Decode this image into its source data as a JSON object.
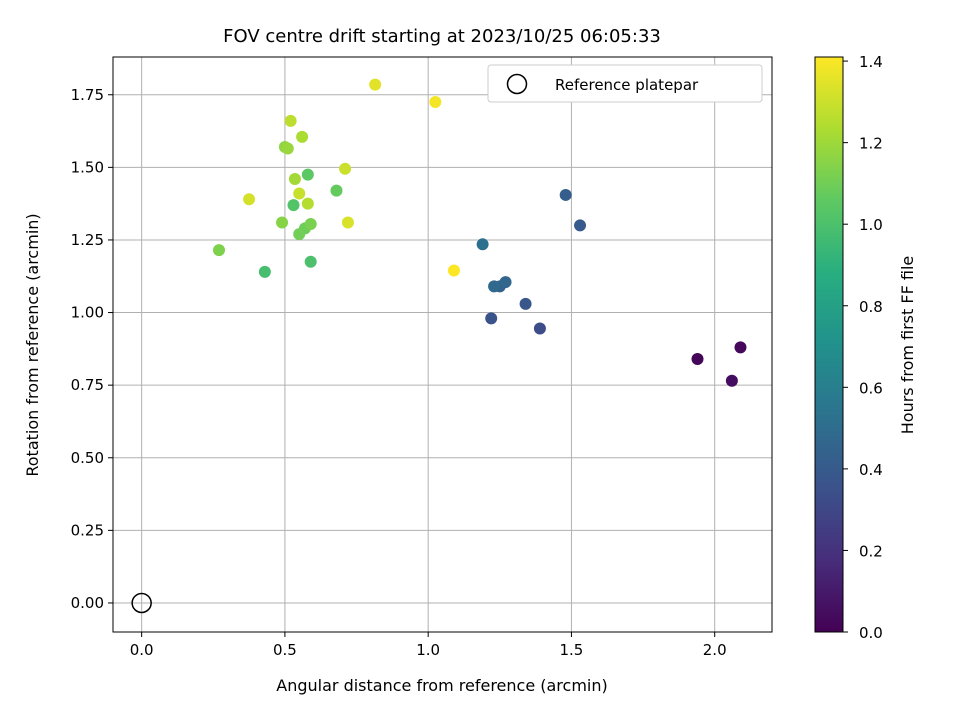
{
  "chart_data": {
    "type": "scatter",
    "title": "FOV centre drift starting at 2023/10/25 06:05:33",
    "xlabel": "Angular distance from reference (arcmin)",
    "ylabel": "Rotation from reference (arcmin)",
    "xlim": [
      -0.1,
      2.2
    ],
    "ylim": [
      -0.1,
      1.88
    ],
    "x_ticks": [
      0.0,
      0.5,
      1.0,
      1.5,
      2.0
    ],
    "x_tick_labels": [
      "0.0",
      "0.5",
      "1.0",
      "1.5",
      "2.0"
    ],
    "y_ticks": [
      0.0,
      0.25,
      0.5,
      0.75,
      1.0,
      1.25,
      1.5,
      1.75
    ],
    "y_tick_labels": [
      "0.00",
      "0.25",
      "0.50",
      "0.75",
      "1.00",
      "1.25",
      "1.50",
      "1.75"
    ],
    "grid": true,
    "colorbar": {
      "label": "Hours from first FF file",
      "colormap": "viridis",
      "range": [
        0.0,
        1.41
      ],
      "ticks": [
        0.0,
        0.2,
        0.4,
        0.6,
        0.8,
        1.0,
        1.2,
        1.4
      ],
      "tick_labels": [
        "0.0",
        "0.2",
        "0.4",
        "0.6",
        "0.8",
        "1.0",
        "1.2",
        "1.4"
      ]
    },
    "legend": {
      "placement": "upper-right",
      "entries": [
        {
          "label": "Reference platepar",
          "marker": "hollow-circle",
          "color": "#000000"
        }
      ]
    },
    "reference_point": {
      "x": 0.0,
      "y": 0.0
    },
    "points": [
      {
        "x": 1.94,
        "y": 0.84,
        "c": 0.02
      },
      {
        "x": 2.09,
        "y": 0.88,
        "c": 0.03
      },
      {
        "x": 2.06,
        "y": 0.765,
        "c": 0.05
      },
      {
        "x": 1.39,
        "y": 0.945,
        "c": 0.33
      },
      {
        "x": 1.22,
        "y": 0.98,
        "c": 0.36
      },
      {
        "x": 1.34,
        "y": 1.03,
        "c": 0.38
      },
      {
        "x": 1.53,
        "y": 1.3,
        "c": 0.4
      },
      {
        "x": 1.48,
        "y": 1.405,
        "c": 0.42
      },
      {
        "x": 1.25,
        "y": 1.09,
        "c": 0.44
      },
      {
        "x": 1.27,
        "y": 1.105,
        "c": 0.46
      },
      {
        "x": 1.23,
        "y": 1.09,
        "c": 0.48
      },
      {
        "x": 1.19,
        "y": 1.235,
        "c": 0.52
      },
      {
        "x": 0.43,
        "y": 1.14,
        "c": 0.98
      },
      {
        "x": 0.59,
        "y": 1.175,
        "c": 1.0
      },
      {
        "x": 0.53,
        "y": 1.37,
        "c": 1.02
      },
      {
        "x": 0.58,
        "y": 1.475,
        "c": 1.05
      },
      {
        "x": 0.68,
        "y": 1.42,
        "c": 1.07
      },
      {
        "x": 0.57,
        "y": 1.29,
        "c": 1.09
      },
      {
        "x": 0.55,
        "y": 1.27,
        "c": 1.1
      },
      {
        "x": 0.59,
        "y": 1.305,
        "c": 1.12
      },
      {
        "x": 0.27,
        "y": 1.215,
        "c": 1.13
      },
      {
        "x": 0.49,
        "y": 1.31,
        "c": 1.15
      },
      {
        "x": 0.5,
        "y": 1.57,
        "c": 1.17
      },
      {
        "x": 0.51,
        "y": 1.565,
        "c": 1.19
      },
      {
        "x": 0.535,
        "y": 1.46,
        "c": 1.21
      },
      {
        "x": 0.56,
        "y": 1.605,
        "c": 1.23
      },
      {
        "x": 0.58,
        "y": 1.375,
        "c": 1.25
      },
      {
        "x": 0.52,
        "y": 1.66,
        "c": 1.27
      },
      {
        "x": 0.55,
        "y": 1.41,
        "c": 1.29
      },
      {
        "x": 0.71,
        "y": 1.495,
        "c": 1.3
      },
      {
        "x": 0.375,
        "y": 1.39,
        "c": 1.32
      },
      {
        "x": 0.72,
        "y": 1.31,
        "c": 1.33
      },
      {
        "x": 0.815,
        "y": 1.785,
        "c": 1.35
      },
      {
        "x": 1.025,
        "y": 1.725,
        "c": 1.39
      },
      {
        "x": 1.09,
        "y": 1.145,
        "c": 1.41
      }
    ]
  }
}
